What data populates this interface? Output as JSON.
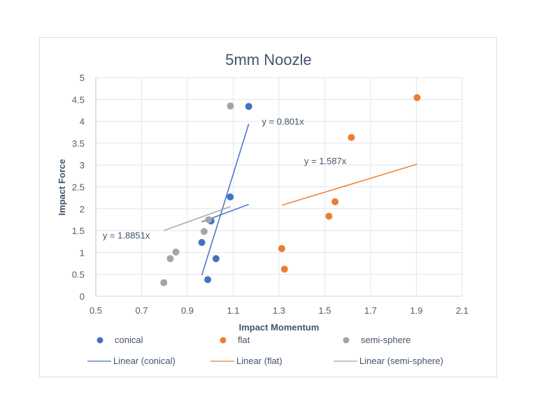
{
  "chart_data": {
    "type": "scatter",
    "title": "5mm Noozle",
    "xlabel": "Impact Momentum",
    "ylabel": "Impact Force",
    "xlim": [
      0.5,
      2.1
    ],
    "ylim": [
      0,
      5
    ],
    "x_ticks": [
      "0.5",
      "0.7",
      "0.9",
      "1.1",
      "1.3",
      "1.5",
      "1.7",
      "1.9",
      "2.1"
    ],
    "y_ticks": [
      "0",
      "0.5",
      "1",
      "1.5",
      "2",
      "2.5",
      "3",
      "3.5",
      "4",
      "4.5",
      "5"
    ],
    "grid": true,
    "legend_position": "bottom",
    "series": [
      {
        "name": "conical",
        "color": "#4472c4",
        "points": [
          [
            1.168,
            4.34
          ],
          [
            1.087,
            2.27
          ],
          [
            1.003,
            1.72
          ],
          [
            0.963,
            1.23
          ],
          [
            1.025,
            0.86
          ],
          [
            0.989,
            0.38
          ]
        ],
        "trendline": {
          "name": "Linear (conical)",
          "equation": "y = 0.801x",
          "slope": 0.801
        }
      },
      {
        "name": "flat",
        "color": "#ed7d31",
        "points": [
          [
            1.903,
            4.54
          ],
          [
            1.616,
            3.63
          ],
          [
            1.545,
            2.16
          ],
          [
            1.518,
            1.83
          ],
          [
            1.312,
            1.09
          ],
          [
            1.324,
            0.62
          ]
        ],
        "trendline": {
          "name": "Linear (flat)",
          "equation": "y = 1.587x",
          "slope": 1.587
        }
      },
      {
        "name": "semi-sphere",
        "color": "#a5a5a5",
        "points": [
          [
            1.088,
            4.35
          ],
          [
            0.993,
            1.75
          ],
          [
            0.973,
            1.48
          ],
          [
            0.85,
            1.01
          ],
          [
            0.825,
            0.86
          ],
          [
            0.797,
            0.31
          ]
        ],
        "trendline": {
          "name": "Linear (semi-sphere)",
          "equation": "y = 1.8851x",
          "slope": 1.8851
        }
      }
    ],
    "trendline_segments": [
      {
        "series": "conical",
        "color": "#4472c4",
        "from": [
          0.963,
          0.48
        ],
        "to": [
          1.168,
          3.94
        ]
      },
      {
        "series": "conical-axis",
        "color": "#4472c4",
        "from": [
          0.963,
          1.7
        ],
        "to": [
          1.168,
          2.1
        ]
      },
      {
        "series": "flat",
        "color": "#ed7d31",
        "from": [
          1.312,
          2.08
        ],
        "to": [
          1.903,
          3.02
        ]
      },
      {
        "series": "semi-sphere",
        "color": "#a5a5a5",
        "from": [
          0.797,
          1.5
        ],
        "to": [
          1.088,
          2.05
        ]
      }
    ],
    "annotations": [
      {
        "text": "y = 0.801x",
        "x": 1.225,
        "y": 4.0
      },
      {
        "text": "y = 1.587x",
        "x": 1.41,
        "y": 3.1
      },
      {
        "text": "y = 1.8851x",
        "x": 0.53,
        "y": 1.4
      }
    ]
  },
  "legend": {
    "markers": [
      "conical",
      "flat",
      "semi-sphere"
    ],
    "lines": [
      "Linear (conical)",
      "Linear (flat)",
      "Linear (semi-sphere)"
    ]
  }
}
